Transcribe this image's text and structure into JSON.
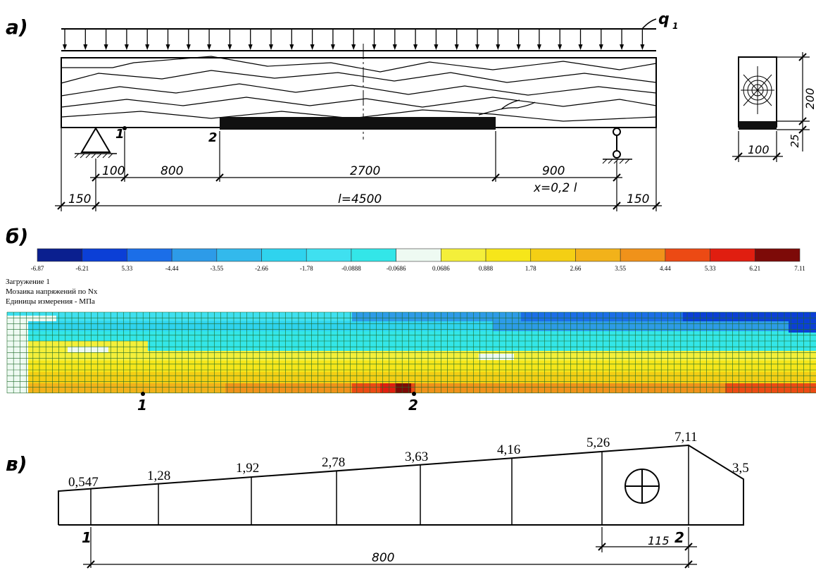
{
  "panels": {
    "a": {
      "letter": "а)",
      "load_label": "q",
      "load_subscript": "1",
      "point_1": "1",
      "point_2": "2",
      "dims_row1": [
        "100",
        "800",
        "2700",
        "900"
      ],
      "x_note": "x=0,2 l",
      "dims_row2": [
        "150",
        "l=4500",
        "150"
      ],
      "section_dims": {
        "height": "200",
        "reinforcement": "25",
        "width": "100"
      }
    },
    "b": {
      "letter": "б)",
      "legend_values": [
        "-6.87",
        "-6.21",
        "5.33",
        "-4.44",
        "-3.55",
        "-2.66",
        "-1.78",
        "-0.0888",
        "-0.0686",
        "0.0686",
        "0.888",
        "1.78",
        "2.66",
        "3.55",
        "4.44",
        "5.33",
        "6.21",
        "7.11"
      ],
      "legend_colors": [
        "#0a1f8f",
        "#0b3fd6",
        "#1b6ee8",
        "#2d9be8",
        "#33b9ec",
        "#2fd3ee",
        "#3fe0f0",
        "#33e6e8",
        "#eefaf2",
        "#f4ef3a",
        "#f6e61a",
        "#f4cf14",
        "#f2b21a",
        "#f0921a",
        "#ec4a14",
        "#e01e10",
        "#7d0a08"
      ],
      "info_lines": [
        "Загружение 1",
        "Мозаика напряжений по Nx",
        "Единицы измерения - МПа"
      ],
      "point_1": "1",
      "point_2": "2"
    },
    "c": {
      "letter": "в)",
      "stress_values": [
        "0,547",
        "1,28",
        "1,92",
        "2,78",
        "3,63",
        "4,16",
        "5,26",
        "7,11",
        "3,5"
      ],
      "point_1": "1",
      "point_2": "2",
      "dim_115": "115",
      "dim_800": "800"
    }
  }
}
